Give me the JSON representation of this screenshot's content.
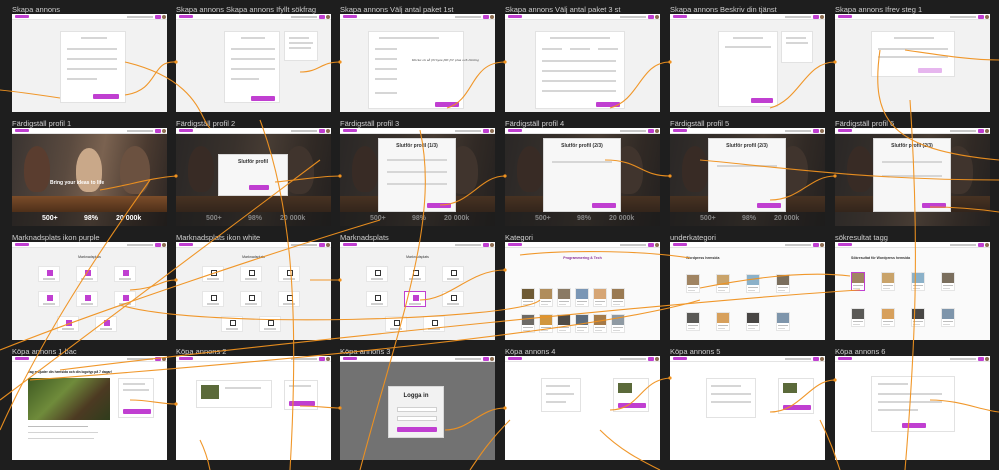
{
  "frames": [
    {
      "id": "f0",
      "label": "Skapa annons"
    },
    {
      "id": "f1",
      "label": "Skapa annons Skapa annons Ifyllt sökfrag"
    },
    {
      "id": "f2",
      "label": "Skapa annons Välj antal paket 1st"
    },
    {
      "id": "f3",
      "label": "Skapa annons Välj antal paket 3 st"
    },
    {
      "id": "f4",
      "label": "Skapa annons Beskriv din tjänst"
    },
    {
      "id": "f5",
      "label": "Skapa annons Ifrev steg 1"
    },
    {
      "id": "f6",
      "label": "Färdigställ profil 1"
    },
    {
      "id": "f7",
      "label": "Färdigställ profil 2"
    },
    {
      "id": "f8",
      "label": "Färdigställ profil 3"
    },
    {
      "id": "f9",
      "label": "Färdigställ profil 4"
    },
    {
      "id": "f10",
      "label": "Färdigställ profil 5"
    },
    {
      "id": "f11",
      "label": "Färdigställ profil 6"
    },
    {
      "id": "f12",
      "label": "Marknadsplats ikon purple"
    },
    {
      "id": "f13",
      "label": "Marknadsplats ikon white"
    },
    {
      "id": "f14",
      "label": "Marknadsplats"
    },
    {
      "id": "f15",
      "label": "Kategori"
    },
    {
      "id": "f16",
      "label": "underkategori"
    },
    {
      "id": "f17",
      "label": "sökresultat tagg"
    },
    {
      "id": "f18",
      "label": "Köpa annons 1 bac"
    },
    {
      "id": "f19",
      "label": "Köpa annons 2"
    },
    {
      "id": "f20",
      "label": "Köpa annons 3"
    },
    {
      "id": "f21",
      "label": "Köpa annons 4"
    },
    {
      "id": "f22",
      "label": "Köpa annons 5"
    },
    {
      "id": "f23",
      "label": "Köpa annons 6"
    }
  ],
  "hero": {
    "headline": "Bring your ideas to life",
    "stats": [
      "500+",
      "98%",
      "20 000k"
    ]
  },
  "modals": {
    "profile_2": "Slutför profil",
    "profile_3": "Slutför profil (1/3)",
    "profile_4": "Slutför profil (2/3)",
    "profile_5": "Slutför profil (2/3)",
    "profile_6": "Slutför profil (2/3)",
    "login": "Logga in"
  },
  "marketplace": {
    "title": "Marknadsplats",
    "category_title": "Programmering & Tech",
    "subcategory_title": "Wordpress hemsida",
    "search_title": "Sökresultat för Wordpress hemsida"
  },
  "buy": {
    "headline": "Jag erbjuder din hemsida och din logotyp på 7 dagar!"
  },
  "annotation": "Klicka ok så förnyas fält för plus och ökning",
  "colors": {
    "accent": "#c03fd1",
    "canvas": "#1e1e1e",
    "wire": "#f0921f"
  }
}
